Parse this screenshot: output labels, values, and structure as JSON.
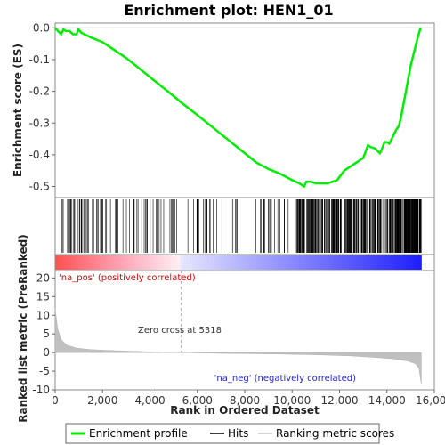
{
  "chart_data": {
    "type": "line",
    "title": "Enrichment plot: HEN1_01",
    "xlabel": "Rank in Ordered Dataset",
    "es_panel": {
      "ylabel": "Enrichment score (ES)",
      "ylim": [
        -0.535,
        0.015
      ],
      "yticks": [
        0.0,
        -0.1,
        -0.2,
        -0.3,
        -0.4,
        -0.5
      ],
      "ytick_labels": [
        "0.0",
        "-0.1",
        "-0.2",
        "-0.3",
        "-0.4",
        "-0.5"
      ]
    },
    "metric_panel": {
      "ylabel": "Ranked list metric (PreRanked)",
      "ylim": [
        -10,
        22
      ],
      "yticks": [
        20,
        15,
        10,
        5,
        0,
        -5,
        -10
      ],
      "ytick_labels": [
        "20",
        "15",
        "10",
        "5",
        "0",
        "-5",
        "-10"
      ],
      "zero_cross_label": "Zero cross at 5318",
      "zero_cross": 5318,
      "pos_label": "'na_pos' (positively correlated)",
      "neg_label": "'na_neg' (negatively correlated)",
      "metric_curve": {
        "x": [
          0,
          100,
          250,
          500,
          900,
          1500,
          2500,
          4000,
          5318,
          7000,
          9000,
          11000,
          12500,
          13500,
          14300,
          14900,
          15200,
          15350,
          15450
        ],
        "y": [
          12.0,
          6.5,
          3.5,
          2.0,
          1.2,
          0.8,
          0.5,
          0.2,
          0.0,
          -0.2,
          -0.35,
          -0.6,
          -0.9,
          -1.3,
          -1.7,
          -2.3,
          -3.0,
          -4.2,
          -8.5
        ]
      }
    },
    "xlim": [
      0,
      16000
    ],
    "xticks": [
      0,
      2000,
      4000,
      6000,
      8000,
      10000,
      12000,
      14000,
      16000
    ],
    "xtick_labels": [
      "0",
      "2,000",
      "4,000",
      "6,000",
      "8,000",
      "10,000",
      "12,000",
      "14,000",
      "16,000"
    ],
    "n_genes": 15450,
    "series": [
      {
        "name": "Enrichment profile",
        "color": "#00ee00",
        "x": [
          0,
          120,
          250,
          350,
          450,
          600,
          750,
          900,
          980,
          1100,
          1500,
          2000,
          2500,
          3000,
          3500,
          4000,
          4500,
          5000,
          5318,
          6000,
          7000,
          8000,
          8500,
          9000,
          9500,
          10000,
          10300,
          10400,
          10500,
          10600,
          10800,
          11000,
          11300,
          11500,
          11700,
          11900,
          12000,
          12200,
          12400,
          12600,
          12800,
          13000,
          13100,
          13200,
          13300,
          13500,
          13700,
          13800,
          13900,
          14000,
          14100,
          14200,
          14300,
          14400,
          14500,
          14600,
          14700,
          14800,
          14900,
          15000,
          15100,
          15200,
          15300,
          15400,
          15430
        ],
        "y": [
          0.0,
          -0.01,
          -0.02,
          -0.005,
          -0.01,
          -0.01,
          -0.02,
          -0.02,
          -0.005,
          -0.015,
          -0.03,
          -0.045,
          -0.07,
          -0.095,
          -0.125,
          -0.155,
          -0.185,
          -0.215,
          -0.235,
          -0.275,
          -0.335,
          -0.395,
          -0.425,
          -0.445,
          -0.46,
          -0.48,
          -0.49,
          -0.495,
          -0.5,
          -0.485,
          -0.485,
          -0.49,
          -0.49,
          -0.49,
          -0.485,
          -0.48,
          -0.47,
          -0.45,
          -0.44,
          -0.43,
          -0.42,
          -0.41,
          -0.39,
          -0.37,
          -0.375,
          -0.38,
          -0.395,
          -0.38,
          -0.36,
          -0.36,
          -0.365,
          -0.35,
          -0.335,
          -0.32,
          -0.31,
          -0.28,
          -0.24,
          -0.2,
          -0.16,
          -0.12,
          -0.09,
          -0.06,
          -0.03,
          -0.005,
          0.0
        ]
      },
      {
        "name": "Hits",
        "color": "#000000"
      },
      {
        "name": "Ranking metric scores",
        "color": "#c8c8c8"
      }
    ],
    "legend_position": "bottom",
    "grid": false
  }
}
